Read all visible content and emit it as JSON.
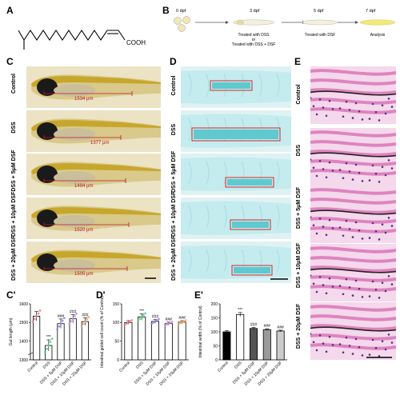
{
  "panels": {
    "A": "A",
    "B": "B",
    "C": "C",
    "D": "D",
    "E": "E",
    "C_prime": "C'",
    "D_prime": "D'",
    "E_prime": "E'"
  },
  "molecule": {
    "cooh": "COOH"
  },
  "timeline": {
    "t0": "0 dpf",
    "t3": "3 dpf",
    "t5": "5 dpf",
    "t7": "7 dpf",
    "step1": "Treated with DSS",
    "step1_or": "or",
    "step1b": "Treated with DSS + DSF",
    "step2": "Treated with DSF",
    "step3": "Analysis"
  },
  "rows": [
    "Control",
    "DSS",
    "DSS + 5μM DSF",
    "DSS + 10μM DSF",
    "DSS + 20μM DSF"
  ],
  "measurements": [
    "1534 μm",
    "1377 μm",
    "1494 μm",
    "1520 μm",
    "1505 μm"
  ],
  "colors": {
    "measure_red": "#c0142b",
    "alcian_blue": "#5fc9cf",
    "he_pink": "#d86fb4",
    "dot_control": "#e87b87",
    "dot_dss": "#4fd18b",
    "dot_5": "#9b7fe0",
    "dot_10": "#c98be0",
    "dot_20": "#f0a35c"
  },
  "chart_data": [
    {
      "type": "bar",
      "title": "",
      "ylabel": "Gut length (μm)",
      "ylim": [
        1300,
        1600
      ],
      "yticks": [
        "1300",
        "1400",
        "1500",
        "1600"
      ],
      "categories": [
        "Control",
        "DSS",
        "DSS + 5μM DSF",
        "DSS + 10μM DSF",
        "DSS + 20μM DSF"
      ],
      "values": [
        1534,
        1377,
        1494,
        1520,
        1505
      ],
      "errors": [
        25,
        30,
        25,
        22,
        20
      ],
      "annotations": [
        "",
        "***",
        "###",
        "###",
        "###"
      ],
      "fill": "hollow"
    },
    {
      "type": "bar",
      "title": "",
      "ylabel": "Intestinal goblet cell count (% of Control)",
      "ylim": [
        0,
        150
      ],
      "yticks": [
        "0",
        "50",
        "100",
        "150"
      ],
      "categories": [
        "Control",
        "DSS",
        "DSS + 5μM DSF",
        "DSS + 10μM DSF",
        "DSS + 20μM DSF"
      ],
      "values": [
        100,
        115,
        103,
        97,
        101
      ],
      "errors": [
        5,
        8,
        5,
        4,
        4
      ],
      "annotations": [
        "",
        "***",
        "###",
        "###",
        "###"
      ],
      "fill": "hollow"
    },
    {
      "type": "bar",
      "title": "",
      "ylabel": "Intestinal width (% of Control)",
      "ylim": [
        0,
        200
      ],
      "yticks": [
        "0",
        "50",
        "100",
        "150",
        "200"
      ],
      "categories": [
        "Control",
        "DSS",
        "DSS + 5μM DSF",
        "DSS + 10μM DSF",
        "DSS + 20μM DSF"
      ],
      "values": [
        100,
        162,
        112,
        108,
        103
      ],
      "errors": [
        4,
        7,
        4,
        3,
        3
      ],
      "annotations": [
        "",
        "***",
        "###",
        "###",
        "###"
      ],
      "fill": "patterned"
    }
  ]
}
